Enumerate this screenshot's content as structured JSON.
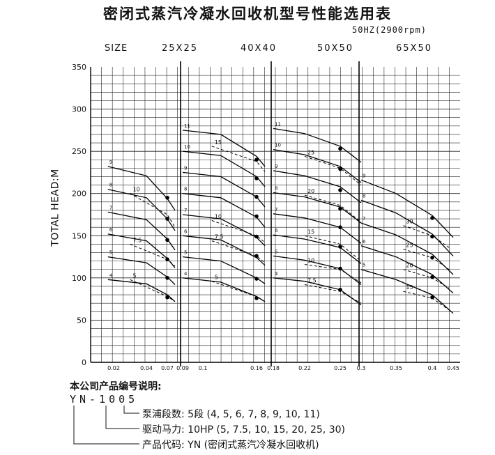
{
  "title": "密闭式蒸汽冷凝水回收机型号性能选用表",
  "subtitle": "50HZ(2900rpm)",
  "size_label": "SIZE",
  "sizes": [
    "25X25",
    "40X40",
    "50X50",
    "65X50"
  ],
  "ylabel": "TOTAL HEAD:M",
  "chart_data": {
    "type": "line",
    "title": "密闭式蒸汽冷凝水回收机型号性能选用表",
    "subtitle": "50HZ(2900rpm)",
    "xlabel": "",
    "ylabel": "TOTAL HEAD:M",
    "ylim": [
      0,
      350
    ],
    "y_ticks": [
      0,
      50,
      100,
      150,
      200,
      250,
      300,
      350
    ],
    "x_ticks": [
      "0.02",
      "0.04",
      "0.07",
      "0.09",
      "0.1",
      "0.16",
      "0.18",
      "0.22",
      "0.25",
      "0.3",
      "0.35",
      "0.4",
      "0.45"
    ],
    "grid": true,
    "size_groups": [
      {
        "size": "25X25",
        "stages": [
          {
            "stage": "4",
            "points": [
              [
                0.015,
                98
              ],
              [
                0.04,
                93
              ],
              [
                0.07,
                80
              ],
              [
                0.08,
                72
              ]
            ]
          },
          {
            "stage": "5",
            "points": [
              [
                0.015,
                125
              ],
              [
                0.04,
                118
              ],
              [
                0.07,
                101
              ],
              [
                0.08,
                92
              ]
            ]
          },
          {
            "stage": "6",
            "points": [
              [
                0.015,
                152
              ],
              [
                0.04,
                144
              ],
              [
                0.07,
                123
              ],
              [
                0.08,
                112
              ]
            ]
          },
          {
            "stage": "7",
            "points": [
              [
                0.015,
                178
              ],
              [
                0.04,
                169
              ],
              [
                0.07,
                146
              ],
              [
                0.08,
                133
              ]
            ]
          },
          {
            "stage": "8",
            "points": [
              [
                0.015,
                205
              ],
              [
                0.04,
                195
              ],
              [
                0.07,
                170
              ],
              [
                0.08,
                156
              ]
            ]
          },
          {
            "stage": "9",
            "points": [
              [
                0.015,
                232
              ],
              [
                0.04,
                221
              ],
              [
                0.07,
                194
              ],
              [
                0.08,
                180
              ]
            ]
          }
        ],
        "power_lines": [
          {
            "hp": "5",
            "points": [
              [
                0.03,
                98
              ],
              [
                0.07,
                78
              ],
              [
                0.08,
                72
              ]
            ]
          },
          {
            "hp": "7.5",
            "points": [
              [
                0.03,
                140
              ],
              [
                0.07,
                122
              ],
              [
                0.08,
                114
              ]
            ]
          },
          {
            "hp": "10",
            "points": [
              [
                0.03,
                200
              ],
              [
                0.07,
                175
              ],
              [
                0.08,
                160
              ]
            ]
          }
        ],
        "operating_points": [
          [
            0.07,
            77
          ],
          [
            0.07,
            100
          ],
          [
            0.07,
            122
          ],
          [
            0.07,
            145
          ],
          [
            0.07,
            170
          ],
          [
            0.07,
            195
          ]
        ]
      },
      {
        "size": "40X40",
        "stages": [
          {
            "stage": "4",
            "points": [
              [
                0.09,
                100
              ],
              [
                0.12,
                95
              ],
              [
                0.16,
                78
              ],
              [
                0.17,
                72
              ]
            ]
          },
          {
            "stage": "5",
            "points": [
              [
                0.09,
                125
              ],
              [
                0.12,
                120
              ],
              [
                0.16,
                100
              ],
              [
                0.17,
                93
              ]
            ]
          },
          {
            "stage": "6",
            "points": [
              [
                0.09,
                150
              ],
              [
                0.12,
                145
              ],
              [
                0.16,
                124
              ],
              [
                0.17,
                115
              ]
            ]
          },
          {
            "stage": "7",
            "points": [
              [
                0.09,
                175
              ],
              [
                0.12,
                170
              ],
              [
                0.16,
                148
              ],
              [
                0.17,
                138
              ]
            ]
          },
          {
            "stage": "8",
            "points": [
              [
                0.09,
                200
              ],
              [
                0.12,
                195
              ],
              [
                0.16,
                172
              ],
              [
                0.17,
                160
              ]
            ]
          },
          {
            "stage": "9",
            "points": [
              [
                0.09,
                225
              ],
              [
                0.12,
                220
              ],
              [
                0.16,
                196
              ],
              [
                0.17,
                184
              ]
            ]
          },
          {
            "stage": "10",
            "points": [
              [
                0.09,
                250
              ],
              [
                0.12,
                245
              ],
              [
                0.16,
                220
              ],
              [
                0.17,
                208
              ]
            ]
          },
          {
            "stage": "11",
            "points": [
              [
                0.09,
                275
              ],
              [
                0.12,
                270
              ],
              [
                0.16,
                244
              ],
              [
                0.17,
                232
              ]
            ]
          }
        ],
        "power_lines": [
          {
            "hp": "5",
            "points": [
              [
                0.11,
                96
              ],
              [
                0.16,
                78
              ],
              [
                0.17,
                72
              ]
            ]
          },
          {
            "hp": "7.5",
            "points": [
              [
                0.11,
                144
              ],
              [
                0.16,
                126
              ],
              [
                0.17,
                118
              ]
            ]
          },
          {
            "hp": "10",
            "points": [
              [
                0.11,
                168
              ],
              [
                0.16,
                150
              ],
              [
                0.17,
                142
              ]
            ]
          },
          {
            "hp": "15",
            "points": [
              [
                0.11,
                256
              ],
              [
                0.16,
                238
              ],
              [
                0.17,
                226
              ]
            ]
          }
        ],
        "operating_points": [
          [
            0.16,
            76
          ],
          [
            0.16,
            99
          ],
          [
            0.16,
            126
          ],
          [
            0.16,
            149
          ],
          [
            0.16,
            173
          ],
          [
            0.16,
            196
          ],
          [
            0.16,
            218
          ],
          [
            0.16,
            240
          ]
        ]
      },
      {
        "size": "50X50",
        "stages": [
          {
            "stage": "4",
            "points": [
              [
                0.18,
                100
              ],
              [
                0.22,
                96
              ],
              [
                0.25,
                86
              ],
              [
                0.3,
                68
              ]
            ]
          },
          {
            "stage": "5",
            "points": [
              [
                0.18,
                126
              ],
              [
                0.22,
                121
              ],
              [
                0.25,
                111
              ],
              [
                0.3,
                92
              ]
            ]
          },
          {
            "stage": "6",
            "points": [
              [
                0.18,
                151
              ],
              [
                0.22,
                146
              ],
              [
                0.25,
                136
              ],
              [
                0.3,
                117
              ]
            ]
          },
          {
            "stage": "7",
            "points": [
              [
                0.18,
                176
              ],
              [
                0.22,
                171
              ],
              [
                0.25,
                160
              ],
              [
                0.3,
                141
              ]
            ]
          },
          {
            "stage": "8",
            "points": [
              [
                0.18,
                201
              ],
              [
                0.22,
                196
              ],
              [
                0.25,
                184
              ],
              [
                0.3,
                165
              ]
            ]
          },
          {
            "stage": "9",
            "points": [
              [
                0.18,
                227
              ],
              [
                0.22,
                221
              ],
              [
                0.25,
                208
              ],
              [
                0.3,
                189
              ]
            ]
          },
          {
            "stage": "10",
            "points": [
              [
                0.18,
                252
              ],
              [
                0.22,
                246
              ],
              [
                0.25,
                232
              ],
              [
                0.3,
                213
              ]
            ]
          },
          {
            "stage": "11",
            "points": [
              [
                0.18,
                277
              ],
              [
                0.22,
                271
              ],
              [
                0.25,
                256
              ],
              [
                0.3,
                237
              ]
            ]
          }
        ],
        "power_lines": [
          {
            "hp": "7.5",
            "points": [
              [
                0.22,
                92
              ],
              [
                0.25,
                84
              ],
              [
                0.3,
                70
              ]
            ]
          },
          {
            "hp": "10",
            "points": [
              [
                0.22,
                116
              ],
              [
                0.25,
                110
              ],
              [
                0.3,
                94
              ]
            ]
          },
          {
            "hp": "15",
            "points": [
              [
                0.22,
                150
              ],
              [
                0.25,
                140
              ],
              [
                0.3,
                120
              ]
            ]
          },
          {
            "hp": "20",
            "points": [
              [
                0.22,
                198
              ],
              [
                0.25,
                186
              ],
              [
                0.3,
                166
              ]
            ]
          },
          {
            "hp": "25",
            "points": [
              [
                0.22,
                244
              ],
              [
                0.25,
                230
              ],
              [
                0.3,
                210
              ]
            ]
          }
        ],
        "operating_points": [
          [
            0.25,
            86
          ],
          [
            0.25,
            111
          ],
          [
            0.25,
            137
          ],
          [
            0.25,
            160
          ],
          [
            0.25,
            182
          ],
          [
            0.25,
            204
          ],
          [
            0.25,
            229
          ],
          [
            0.25,
            253
          ]
        ]
      },
      {
        "size": "65X50",
        "stages": [
          {
            "stage": "5",
            "points": [
              [
                0.3,
                110
              ],
              [
                0.35,
                98
              ],
              [
                0.4,
                80
              ],
              [
                0.45,
                58
              ]
            ]
          },
          {
            "stage": "6",
            "points": [
              [
                0.3,
                138
              ],
              [
                0.35,
                125
              ],
              [
                0.4,
                104
              ],
              [
                0.45,
                82
              ]
            ]
          },
          {
            "stage": "7",
            "points": [
              [
                0.3,
                165
              ],
              [
                0.35,
                151
              ],
              [
                0.4,
                128
              ],
              [
                0.45,
                104
              ]
            ]
          },
          {
            "stage": "8",
            "points": [
              [
                0.3,
                192
              ],
              [
                0.35,
                177
              ],
              [
                0.4,
                152
              ],
              [
                0.45,
                126
              ]
            ]
          },
          {
            "stage": "9",
            "points": [
              [
                0.3,
                216
              ],
              [
                0.35,
                200
              ],
              [
                0.4,
                174
              ],
              [
                0.45,
                148
              ]
            ]
          }
        ],
        "power_lines": [
          {
            "hp": "15",
            "points": [
              [
                0.36,
                84
              ],
              [
                0.4,
                76
              ],
              [
                0.44,
                62
              ]
            ]
          },
          {
            "hp": "20",
            "points": [
              [
                0.36,
                110
              ],
              [
                0.4,
                100
              ],
              [
                0.44,
                88
              ]
            ]
          },
          {
            "hp": "25",
            "points": [
              [
                0.36,
                134
              ],
              [
                0.4,
                124
              ],
              [
                0.44,
                110
              ]
            ]
          },
          {
            "hp": "30",
            "points": [
              [
                0.36,
                162
              ],
              [
                0.4,
                150
              ],
              [
                0.44,
                136
              ]
            ]
          }
        ],
        "operating_points": [
          [
            0.4,
            77
          ],
          [
            0.4,
            101
          ],
          [
            0.4,
            124
          ],
          [
            0.4,
            149
          ],
          [
            0.4,
            171
          ]
        ]
      }
    ]
  },
  "legend": {
    "heading": "本公司产品编号说明:",
    "model_code": "YN-1005",
    "lines": [
      "泵浦段数: 5段 (4, 5, 6, 7, 8, 9, 10, 11)",
      "驱动马力: 10HP (5, 7.5, 10, 15, 20, 25, 30)",
      "产品代码: YN (密闭式蒸汽冷凝水回收机)"
    ]
  }
}
